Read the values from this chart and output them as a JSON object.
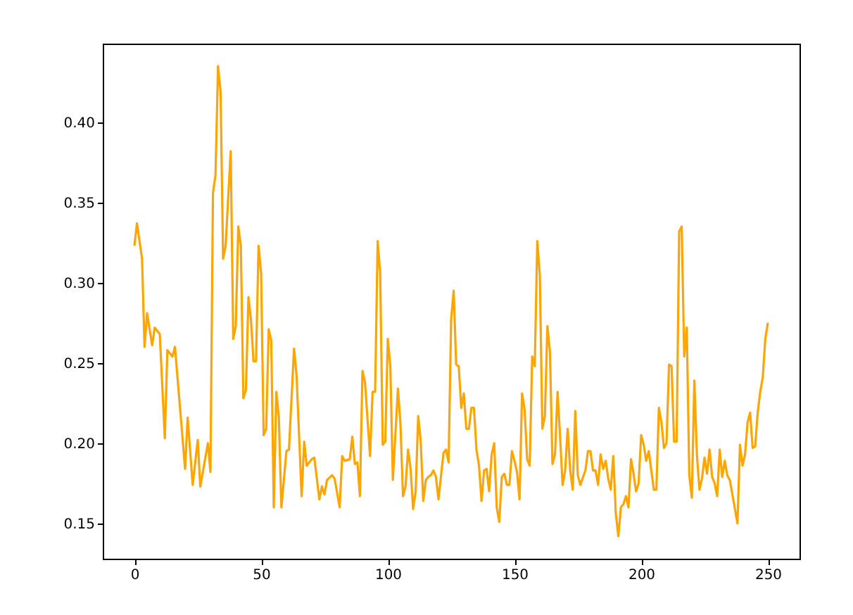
{
  "chart_data": {
    "type": "line",
    "x": [
      0,
      1,
      3,
      4,
      5,
      7,
      8,
      10,
      12,
      13,
      15,
      16,
      20,
      21,
      23,
      25,
      26,
      29,
      30,
      31,
      32,
      33,
      34,
      35,
      36,
      38,
      39,
      40,
      41,
      42,
      43,
      44,
      45,
      46,
      47,
      48,
      49,
      50,
      51,
      52,
      53,
      54,
      55,
      56,
      57,
      58,
      60,
      61,
      63,
      64,
      66,
      67,
      68,
      70,
      71,
      73,
      74,
      75,
      76,
      78,
      79,
      81,
      82,
      83,
      85,
      86,
      87,
      88,
      89,
      90,
      91,
      93,
      94,
      95,
      96,
      97,
      98,
      99,
      100,
      101,
      102,
      104,
      105,
      106,
      107,
      108,
      109,
      110,
      111,
      112,
      113,
      114,
      115,
      116,
      117,
      118,
      119,
      120,
      122,
      123,
      124,
      125,
      126,
      127,
      128,
      129,
      130,
      131,
      132,
      133,
      134,
      135,
      136,
      137,
      138,
      139,
      140,
      141,
      142,
      143,
      144,
      145,
      146,
      147,
      148,
      149,
      150,
      151,
      152,
      153,
      154,
      155,
      156,
      157,
      158,
      159,
      160,
      161,
      162,
      163,
      164,
      165,
      166,
      167,
      168,
      169,
      170,
      171,
      172,
      173,
      174,
      175,
      176,
      178,
      179,
      180,
      181,
      182,
      183,
      184,
      185,
      186,
      187,
      188,
      189,
      190,
      191,
      192,
      193,
      194,
      195,
      196,
      197,
      198,
      199,
      200,
      201,
      202,
      203,
      204,
      205,
      206,
      207,
      208,
      209,
      210,
      211,
      212,
      213,
      214,
      215,
      216,
      217,
      218,
      219,
      220,
      221,
      222,
      223,
      224,
      225,
      226,
      227,
      228,
      229,
      230,
      231,
      232,
      233,
      234,
      235,
      237,
      238,
      239,
      240,
      241,
      242,
      243,
      244,
      245,
      246,
      247,
      248,
      249,
      250
    ],
    "series": [
      {
        "color": "#ffa500",
        "values": [
          0.323,
          0.337,
          0.315,
          0.26,
          0.281,
          0.261,
          0.272,
          0.268,
          0.203,
          0.258,
          0.254,
          0.26,
          0.184,
          0.216,
          0.174,
          0.202,
          0.173,
          0.2,
          0.182,
          0.356,
          0.367,
          0.435,
          0.419,
          0.315,
          0.323,
          0.382,
          0.265,
          0.273,
          0.335,
          0.323,
          0.228,
          0.233,
          0.291,
          0.277,
          0.251,
          0.251,
          0.323,
          0.306,
          0.205,
          0.209,
          0.271,
          0.264,
          0.16,
          0.232,
          0.216,
          0.16,
          0.195,
          0.196,
          0.259,
          0.242,
          0.167,
          0.201,
          0.186,
          0.19,
          0.191,
          0.165,
          0.173,
          0.168,
          0.177,
          0.18,
          0.178,
          0.16,
          0.192,
          0.189,
          0.19,
          0.204,
          0.187,
          0.188,
          0.167,
          0.245,
          0.238,
          0.192,
          0.232,
          0.232,
          0.326,
          0.306,
          0.199,
          0.201,
          0.265,
          0.248,
          0.177,
          0.234,
          0.212,
          0.167,
          0.173,
          0.196,
          0.184,
          0.159,
          0.17,
          0.217,
          0.201,
          0.164,
          0.177,
          0.179,
          0.18,
          0.183,
          0.179,
          0.165,
          0.194,
          0.196,
          0.188,
          0.277,
          0.295,
          0.249,
          0.248,
          0.222,
          0.231,
          0.209,
          0.209,
          0.222,
          0.222,
          0.196,
          0.186,
          0.164,
          0.183,
          0.184,
          0.17,
          0.193,
          0.2,
          0.16,
          0.151,
          0.179,
          0.181,
          0.174,
          0.174,
          0.195,
          0.189,
          0.182,
          0.165,
          0.231,
          0.221,
          0.19,
          0.186,
          0.254,
          0.248,
          0.326,
          0.305,
          0.209,
          0.217,
          0.273,
          0.257,
          0.187,
          0.193,
          0.232,
          0.204,
          0.174,
          0.183,
          0.209,
          0.183,
          0.171,
          0.22,
          0.18,
          0.174,
          0.183,
          0.195,
          0.195,
          0.183,
          0.183,
          0.174,
          0.193,
          0.184,
          0.189,
          0.178,
          0.171,
          0.192,
          0.156,
          0.142,
          0.16,
          0.162,
          0.167,
          0.16,
          0.19,
          0.181,
          0.17,
          0.175,
          0.205,
          0.199,
          0.189,
          0.195,
          0.183,
          0.171,
          0.171,
          0.222,
          0.213,
          0.197,
          0.2,
          0.249,
          0.248,
          0.201,
          0.201,
          0.332,
          0.335,
          0.254,
          0.272,
          0.18,
          0.166,
          0.239,
          0.193,
          0.171,
          0.178,
          0.191,
          0.181,
          0.196,
          0.179,
          0.175,
          0.167,
          0.196,
          0.179,
          0.189,
          0.18,
          0.177,
          0.159,
          0.15,
          0.199,
          0.186,
          0.193,
          0.213,
          0.219,
          0.197,
          0.198,
          0.219,
          0.232,
          0.241,
          0.265,
          0.275
        ]
      }
    ],
    "xlim": [
      -12.5,
      262.5
    ],
    "ylim": [
      0.128,
      0.449
    ],
    "xticks": [
      0,
      50,
      100,
      150,
      200,
      250
    ],
    "yticks": [
      {
        "value": 0.15,
        "label": "0.15"
      },
      {
        "value": 0.2,
        "label": "0.20"
      },
      {
        "value": 0.25,
        "label": "0.25"
      },
      {
        "value": 0.3,
        "label": "0.30"
      },
      {
        "value": 0.35,
        "label": "0.35"
      },
      {
        "value": 0.4,
        "label": "0.40"
      }
    ],
    "grid": false,
    "marker": "none",
    "line_style": "solid"
  }
}
